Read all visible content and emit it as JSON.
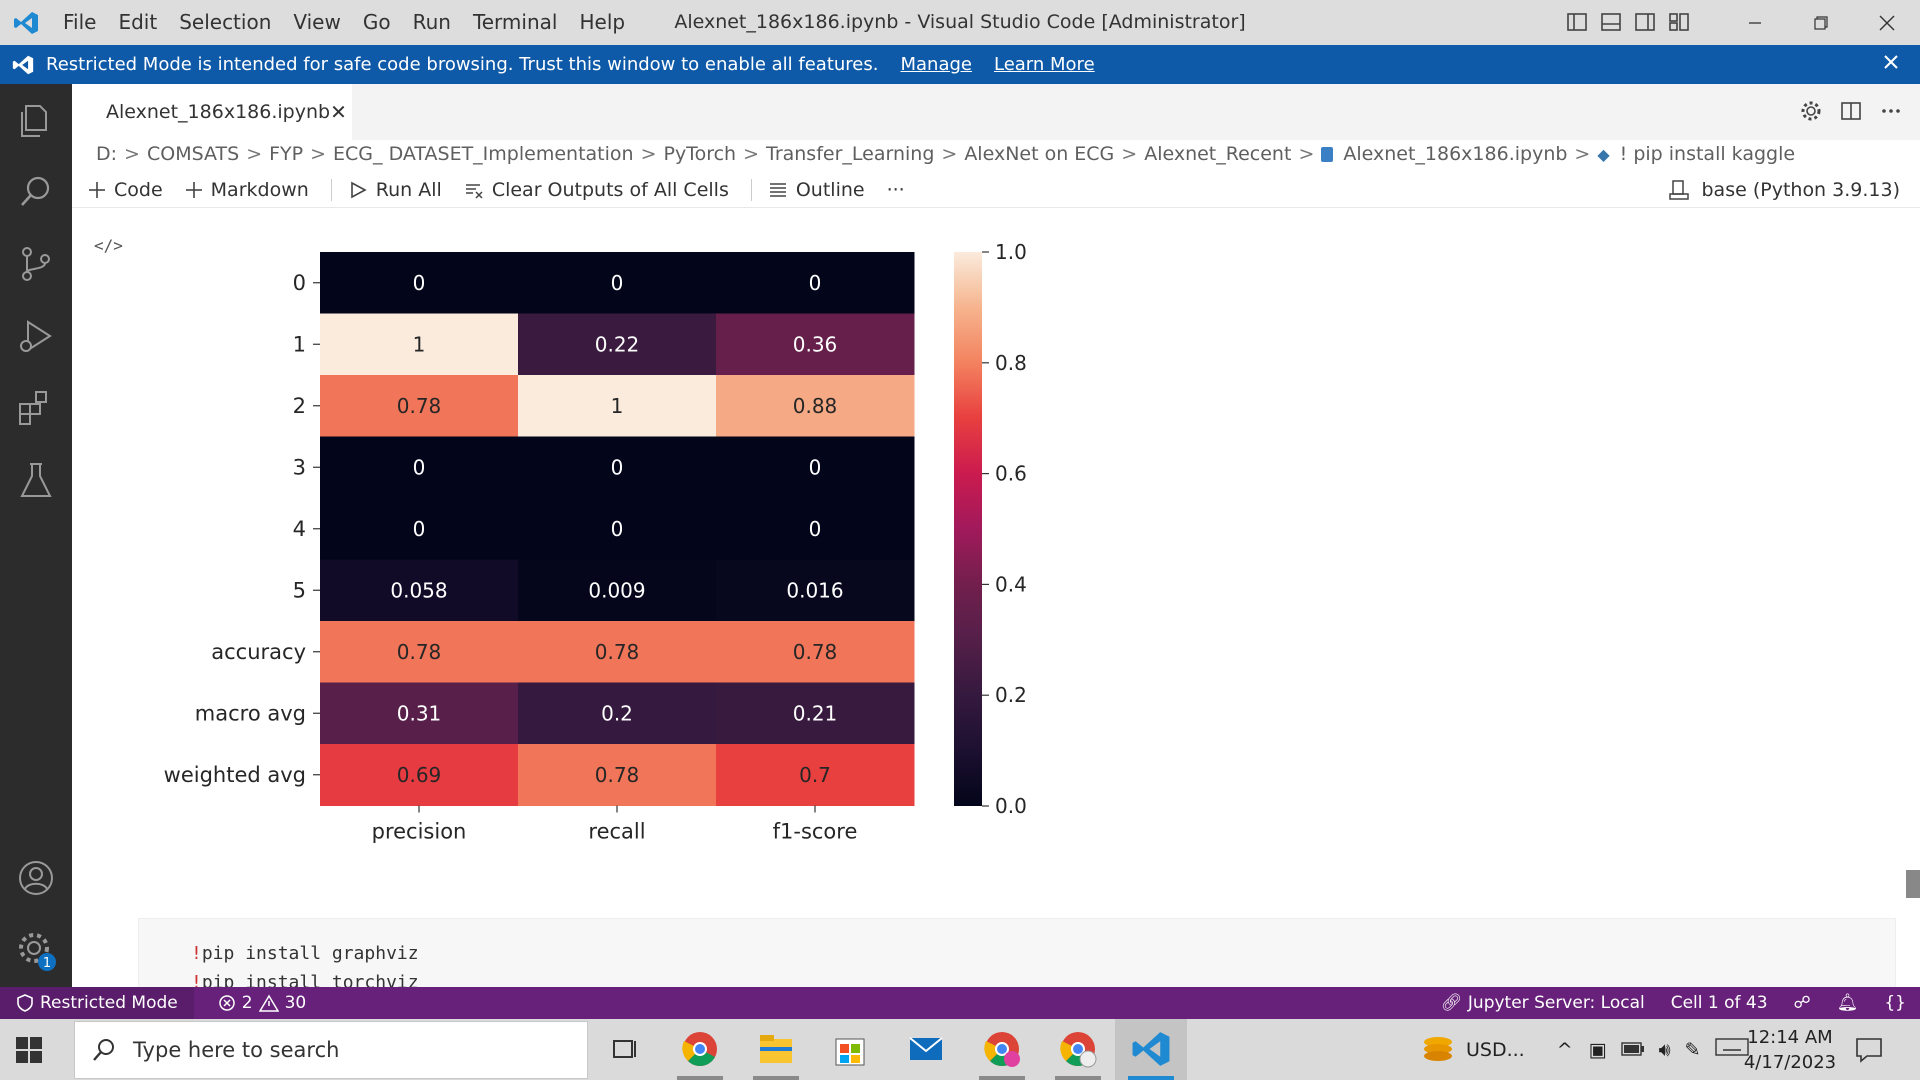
{
  "window": {
    "title": "Alexnet_186x186.ipynb - Visual Studio Code [Administrator]",
    "menu": [
      "File",
      "Edit",
      "Selection",
      "View",
      "Go",
      "Run",
      "Terminal",
      "Help"
    ]
  },
  "banner": {
    "message": "Restricted Mode is intended for safe code browsing. Trust this window to enable all features.",
    "manage_link": "Manage",
    "learn_more_link": "Learn More"
  },
  "tab": {
    "label": "Alexnet_186x186.ipynb"
  },
  "breadcrumb": [
    "D:",
    "COMSATS",
    "FYP",
    "ECG_ DATASET_Implementation",
    "PyTorch",
    "Transfer_Learning",
    "AlexNet on ECG",
    "Alexnet_Recent",
    "Alexnet_186x186.ipynb",
    "! pip install kaggle"
  ],
  "toolbar": {
    "code": "Code",
    "markdown": "Markdown",
    "run_all": "Run All",
    "clear_outputs": "Clear Outputs of All Cells",
    "outline": "Outline",
    "more": "···",
    "kernel": "base (Python 3.9.13)"
  },
  "output_icon": "</>",
  "chart_data": {
    "type": "heatmap",
    "rows": [
      "0",
      "1",
      "2",
      "3",
      "4",
      "5",
      "accuracy",
      "macro avg",
      "weighted avg"
    ],
    "columns": [
      "precision",
      "recall",
      "f1-score"
    ],
    "values": [
      [
        0,
        0,
        0
      ],
      [
        1,
        0.22,
        0.36
      ],
      [
        0.78,
        1,
        0.88
      ],
      [
        0,
        0,
        0
      ],
      [
        0,
        0,
        0
      ],
      [
        0.058,
        0.009,
        0.016
      ],
      [
        0.78,
        0.78,
        0.78
      ],
      [
        0.31,
        0.2,
        0.21
      ],
      [
        0.69,
        0.78,
        0.7
      ]
    ],
    "labels": [
      [
        "0",
        "0",
        "0"
      ],
      [
        "1",
        "0.22",
        "0.36"
      ],
      [
        "0.78",
        "1",
        "0.88"
      ],
      [
        "0",
        "0",
        "0"
      ],
      [
        "0",
        "0",
        "0"
      ],
      [
        "0.058",
        "0.009",
        "0.016"
      ],
      [
        "0.78",
        "0.78",
        "0.78"
      ],
      [
        "0.31",
        "0.2",
        "0.21"
      ],
      [
        "0.69",
        "0.78",
        "0.7"
      ]
    ],
    "colorbar": {
      "range": [
        0.0,
        1.0
      ],
      "ticks": [
        "0.0",
        "0.2",
        "0.4",
        "0.6",
        "0.8",
        "1.0"
      ]
    },
    "colormap": "rocket"
  },
  "code_cell": {
    "lines": [
      "pip install graphviz",
      "pip install torchviz"
    ]
  },
  "statusbar": {
    "restricted": "Restricted Mode",
    "errors": "2",
    "warnings": "30",
    "jupyter": "Jupyter Server: Local",
    "cell": "Cell 1 of 43",
    "badge": "1"
  },
  "taskbar": {
    "search_placeholder": "Type here to search",
    "tray_text": "USD...",
    "time": "12:14 AM",
    "date": "4/17/2023"
  }
}
